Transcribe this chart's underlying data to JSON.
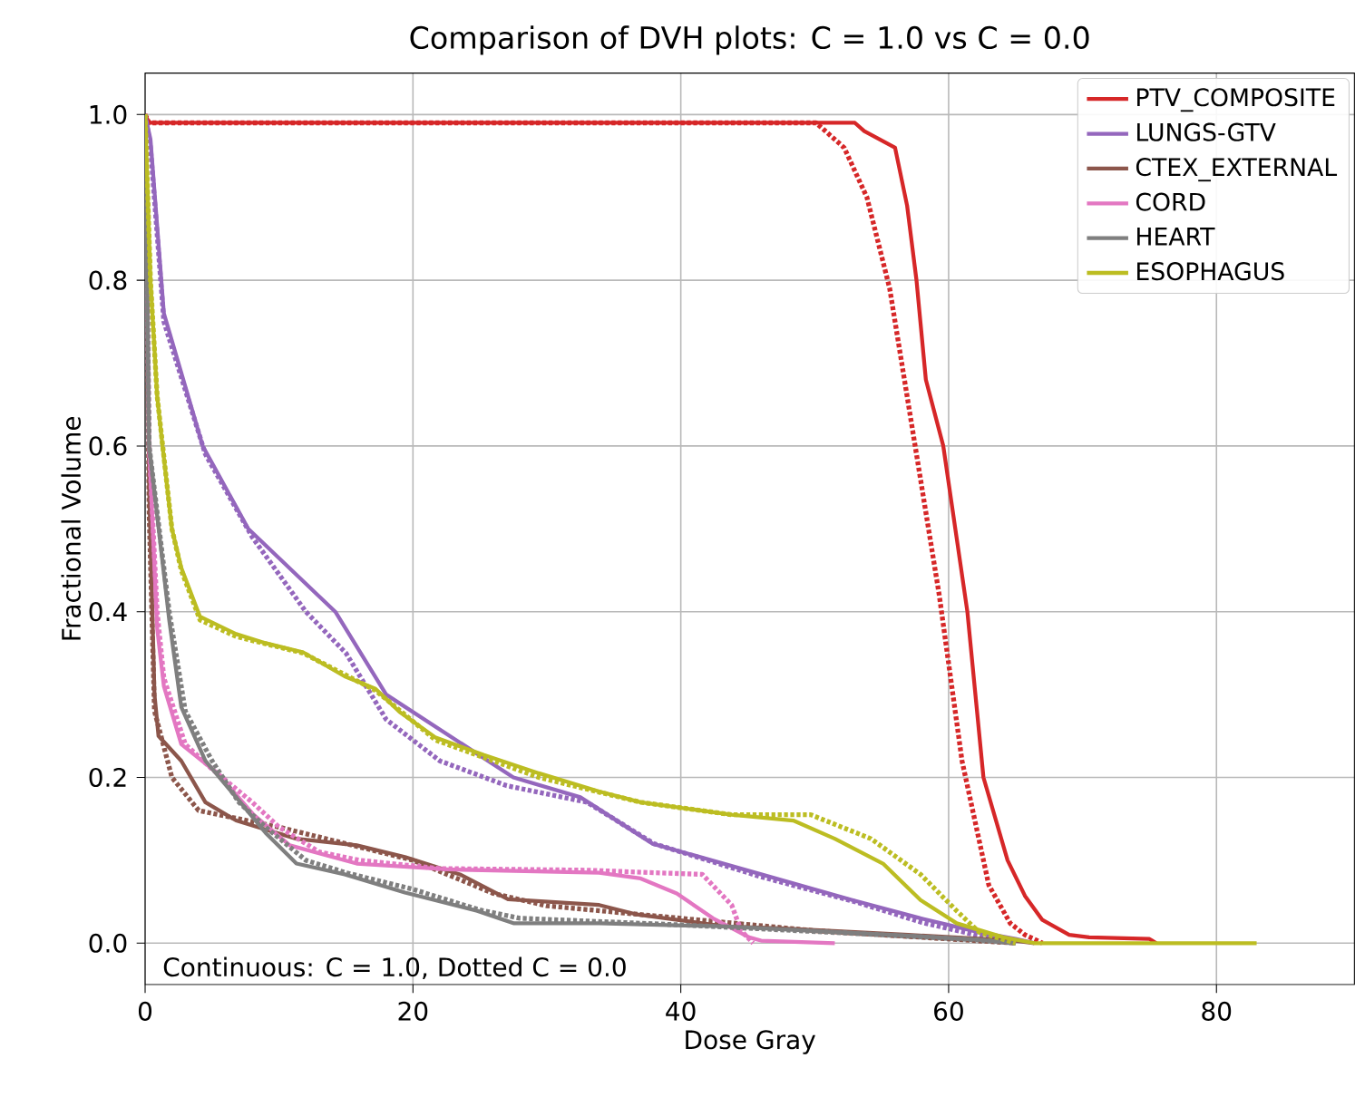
{
  "chart_data": {
    "type": "line",
    "title": "Comparison of DVH plots: C = 1.0 vs C = 0.0",
    "xlabel": "Dose Gray",
    "ylabel": "Fractional Volume",
    "annotations": [
      "Continuous: C = 1.0, Dotted C = 0.0"
    ],
    "xlim": [
      0,
      90.3
    ],
    "ylim": [
      -0.05,
      1.05
    ],
    "xticks": [
      0,
      20,
      40,
      60,
      80
    ],
    "yticks": [
      {
        "value": 0,
        "label": "0.0"
      },
      {
        "value": 0.2,
        "label": "0.2"
      },
      {
        "value": 0.4,
        "label": "0.4"
      },
      {
        "value": 0.6,
        "label": "0.6"
      },
      {
        "value": 0.8,
        "label": "0.8"
      },
      {
        "value": 1,
        "label": "1.0"
      }
    ],
    "grid": true,
    "legend": "top right",
    "marker": "none",
    "series": [
      {
        "name": "PTV_COMPOSITE",
        "color": "#d62728",
        "line_style": "solid",
        "x": [
          0,
          0.3,
          53,
          53.7,
          56,
          56.9,
          57.6,
          58.3,
          59.6,
          61.4,
          62.6,
          64.4,
          65.7,
          67,
          69,
          70.5,
          75,
          75.5
        ],
        "values": [
          1.0,
          0.99,
          0.99,
          0.98,
          0.96,
          0.89,
          0.8,
          0.68,
          0.6,
          0.4,
          0.2,
          0.1,
          0.057,
          0.028,
          0.01,
          0.007,
          0.005,
          0
        ]
      },
      {
        "color": "#d62728",
        "line_style": "dotted",
        "x": [
          0,
          0.3,
          50.1,
          52.2,
          53.9,
          55.6,
          57.6,
          59.3,
          61,
          63,
          64.6,
          65.7,
          67
        ],
        "values": [
          1.0,
          0.99,
          0.99,
          0.96,
          0.9,
          0.79,
          0.59,
          0.42,
          0.22,
          0.07,
          0.024,
          0.01,
          0
        ]
      },
      {
        "name": "LUNGS-GTV",
        "color": "#9467bd",
        "line_style": "solid",
        "x": [
          0,
          0.4,
          1.4,
          4.3,
          7.7,
          12.9,
          14.2,
          18,
          27.5,
          32.5,
          37.9,
          46,
          52.8,
          57.9,
          62.3,
          65,
          66.4
        ],
        "values": [
          1.0,
          0.97,
          0.76,
          0.6,
          0.5,
          0.42,
          0.4,
          0.3,
          0.2,
          0.176,
          0.12,
          0.083,
          0.052,
          0.03,
          0.013,
          0.005,
          0
        ]
      },
      {
        "color": "#9467bd",
        "line_style": "dotted",
        "x": [
          0,
          0.4,
          1.4,
          4.5,
          8,
          12,
          15,
          18,
          22,
          27,
          33,
          38,
          46,
          53,
          58,
          62,
          65
        ],
        "values": [
          1.0,
          0.96,
          0.75,
          0.59,
          0.49,
          0.4,
          0.35,
          0.27,
          0.22,
          0.19,
          0.17,
          0.12,
          0.08,
          0.05,
          0.025,
          0.01,
          0
        ]
      },
      {
        "name": "CTEX_EXTERNAL",
        "color": "#8c564b",
        "line_style": "solid",
        "x": [
          0,
          0.3,
          0.7,
          1,
          2.7,
          4.5,
          6.8,
          9,
          11.3,
          15.8,
          19.4,
          23.5,
          27.1,
          33.9,
          36.6,
          43.4,
          47.4,
          57,
          65,
          66.4
        ],
        "values": [
          1.0,
          0.55,
          0.3,
          0.25,
          0.22,
          0.17,
          0.148,
          0.137,
          0.126,
          0.118,
          0.104,
          0.083,
          0.053,
          0.046,
          0.035,
          0.02,
          0.018,
          0.01,
          0.003,
          0
        ]
      },
      {
        "color": "#8c564b",
        "line_style": "dotted",
        "x": [
          0,
          0.3,
          0.7,
          2,
          4,
          7,
          10,
          15,
          20,
          26,
          30,
          40,
          50,
          60,
          65
        ],
        "values": [
          1.0,
          0.52,
          0.28,
          0.2,
          0.16,
          0.15,
          0.14,
          0.12,
          0.1,
          0.06,
          0.045,
          0.03,
          0.015,
          0.005,
          0
        ]
      },
      {
        "name": "CORD",
        "color": "#e377c2",
        "line_style": "solid",
        "x": [
          0,
          0.3,
          0.9,
          1.4,
          2.7,
          5.4,
          8.1,
          10.8,
          15.8,
          22.6,
          33.9,
          37,
          39.7,
          42.4,
          45.1,
          46,
          51.5
        ],
        "values": [
          1.0,
          0.6,
          0.38,
          0.31,
          0.24,
          0.205,
          0.155,
          0.118,
          0.096,
          0.089,
          0.085,
          0.078,
          0.06,
          0.03,
          0.007,
          0.003,
          0
        ]
      },
      {
        "color": "#e377c2",
        "line_style": "dotted",
        "x": [
          0,
          0.3,
          0.9,
          1.4,
          3,
          5,
          8,
          10,
          13,
          16,
          22,
          33,
          38,
          41.6,
          43.8,
          44.5,
          45.4
        ],
        "values": [
          1.0,
          0.6,
          0.4,
          0.32,
          0.24,
          0.21,
          0.17,
          0.14,
          0.11,
          0.1,
          0.09,
          0.088,
          0.085,
          0.083,
          0.046,
          0.015,
          0
        ]
      },
      {
        "name": "HEART",
        "color": "#7f7f7f",
        "line_style": "solid",
        "x": [
          0,
          0.3,
          1.8,
          2.7,
          4.5,
          6.8,
          9,
          11.3,
          14.9,
          19.4,
          24.8,
          27.5,
          33.9,
          43.4,
          57,
          62.3,
          65
        ],
        "values": [
          1.0,
          0.6,
          0.39,
          0.285,
          0.22,
          0.176,
          0.133,
          0.096,
          0.083,
          0.061,
          0.039,
          0.024,
          0.024,
          0.02,
          0.009,
          0.004,
          0
        ]
      },
      {
        "color": "#7f7f7f",
        "line_style": "dotted",
        "x": [
          0,
          0.3,
          1.8,
          3,
          5,
          7,
          9,
          12,
          15,
          20,
          25,
          28,
          40,
          55,
          62,
          65
        ],
        "values": [
          1.0,
          0.6,
          0.4,
          0.28,
          0.22,
          0.17,
          0.14,
          0.1,
          0.085,
          0.065,
          0.04,
          0.03,
          0.022,
          0.01,
          0.004,
          0
        ]
      },
      {
        "name": "ESOPHAGUS",
        "color": "#bcbd22",
        "line_style": "solid",
        "x": [
          0,
          0.4,
          0.9,
          1.3,
          2,
          2.7,
          4.1,
          6.8,
          9,
          11.8,
          14.9,
          17.2,
          19,
          21.7,
          25.3,
          29.4,
          33.9,
          37,
          43.8,
          48.4,
          51.5,
          55.1,
          57.9,
          60.6,
          64.1,
          66.4,
          83
        ],
        "values": [
          1.0,
          0.8,
          0.66,
          0.6,
          0.5,
          0.453,
          0.394,
          0.373,
          0.362,
          0.351,
          0.322,
          0.307,
          0.279,
          0.248,
          0.227,
          0.205,
          0.183,
          0.17,
          0.155,
          0.148,
          0.126,
          0.096,
          0.052,
          0.024,
          0.007,
          0,
          0
        ]
      },
      {
        "color": "#bcbd22",
        "line_style": "dotted",
        "x": [
          0,
          0.4,
          0.9,
          2,
          2.7,
          4.1,
          6.8,
          11.8,
          17.2,
          21.7,
          29.4,
          37,
          43.8,
          49.7,
          54.2,
          57.9,
          60.6,
          62.3,
          65
        ],
        "values": [
          1.0,
          0.8,
          0.66,
          0.5,
          0.45,
          0.39,
          0.37,
          0.35,
          0.305,
          0.245,
          0.2,
          0.17,
          0.155,
          0.155,
          0.126,
          0.083,
          0.039,
          0.013,
          0
        ]
      }
    ]
  }
}
